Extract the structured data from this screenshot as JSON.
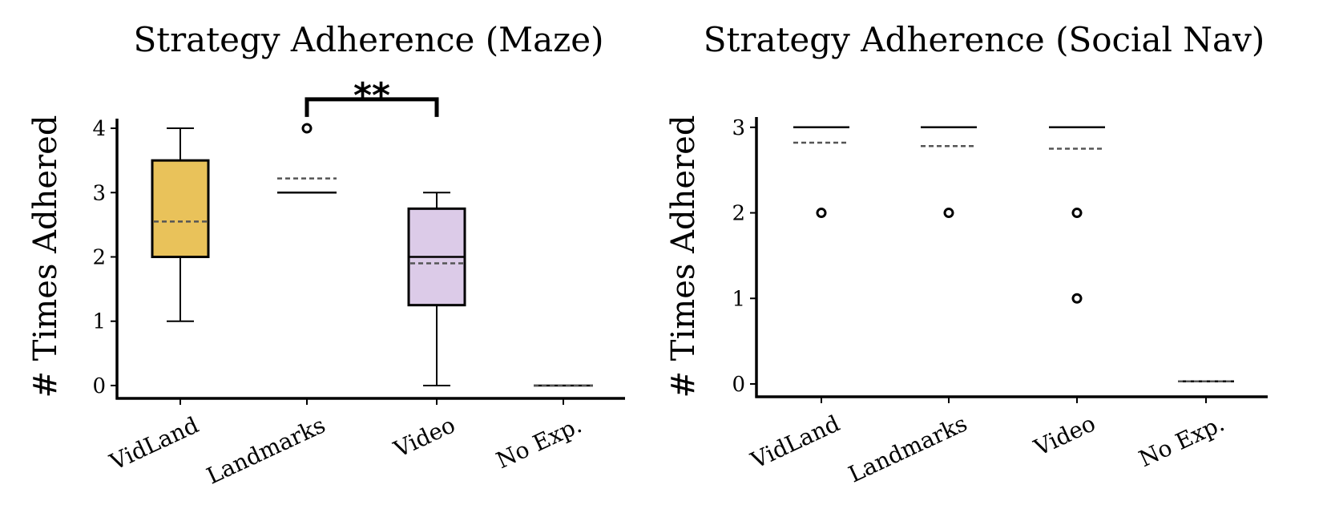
{
  "chart_data": [
    {
      "type": "box",
      "title": "Strategy Adherence (Maze)",
      "ylabel": "# Times Adhered",
      "categories": [
        "VidLand",
        "Landmarks",
        "Video",
        "No Exp."
      ],
      "yticks": [
        0,
        1,
        2,
        3,
        4
      ],
      "ylim": [
        -0.2,
        4.15
      ],
      "boxes": [
        {
          "category": "VidLand",
          "whisker_low": 1,
          "q1": 2,
          "median": 2,
          "q3": 3.5,
          "whisker_high": 4,
          "mean": 2.55,
          "outliers": [],
          "color": "#e9c25a"
        },
        {
          "category": "Landmarks",
          "whisker_low": 3,
          "q1": 3,
          "median": 3,
          "q3": 3,
          "whisker_high": 3,
          "mean": 3.22,
          "outliers": [
            4
          ],
          "color": "#ffffff"
        },
        {
          "category": "Video",
          "whisker_low": 0,
          "q1": 1.25,
          "median": 2,
          "q3": 2.75,
          "whisker_high": 3,
          "mean": 1.9,
          "outliers": [],
          "color": "#dccbe8"
        },
        {
          "category": "No Exp.",
          "whisker_low": 0,
          "q1": 0,
          "median": 0,
          "q3": 0,
          "whisker_high": 0,
          "mean": 0,
          "outliers": [],
          "color": "#ffffff"
        }
      ],
      "significance": [
        {
          "from": "Landmarks",
          "to": "Video",
          "label": "**",
          "level": 4.45
        }
      ]
    },
    {
      "type": "box",
      "title": "Strategy Adherence (Social Nav)",
      "ylabel": "# Times Adhered",
      "categories": [
        "VidLand",
        "Landmarks",
        "Video",
        "No Exp."
      ],
      "yticks": [
        0,
        1,
        2,
        3
      ],
      "ylim": [
        -0.15,
        3.12
      ],
      "boxes": [
        {
          "category": "VidLand",
          "whisker_low": 3,
          "q1": 3,
          "median": 3,
          "q3": 3,
          "whisker_high": 3,
          "mean": 2.82,
          "outliers": [
            2
          ],
          "color": "#ffffff"
        },
        {
          "category": "Landmarks",
          "whisker_low": 3,
          "q1": 3,
          "median": 3,
          "q3": 3,
          "whisker_high": 3,
          "mean": 2.78,
          "outliers": [
            2
          ],
          "color": "#ffffff"
        },
        {
          "category": "Video",
          "whisker_low": 3,
          "q1": 3,
          "median": 3,
          "q3": 3,
          "whisker_high": 3,
          "mean": 2.75,
          "outliers": [
            2,
            1
          ],
          "color": "#ffffff"
        },
        {
          "category": "No Exp.",
          "whisker_low": 0.03,
          "q1": 0.03,
          "median": 0.03,
          "q3": 0.03,
          "whisker_high": 0.03,
          "mean": 0.03,
          "outliers": [],
          "color": "#ffffff"
        }
      ],
      "significance": []
    }
  ]
}
